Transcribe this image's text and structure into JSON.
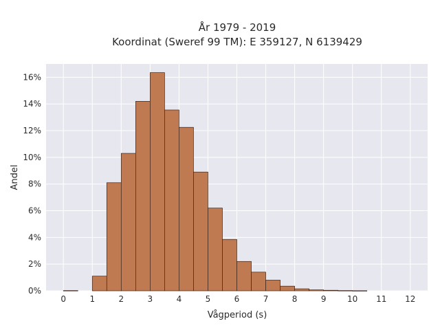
{
  "chart_data": {
    "type": "bar",
    "title_line1": "År 1979 - 2019",
    "title_line2": "Koordinat (Sweref 99 TM): E 359127, N 6139429",
    "xlabel": "Vågperiod (s)",
    "ylabel": "Andel",
    "xlim": [
      -0.6,
      12.6
    ],
    "ylim": [
      0,
      17
    ],
    "x_ticks": [
      0,
      1,
      2,
      3,
      4,
      5,
      6,
      7,
      8,
      9,
      10,
      11,
      12
    ],
    "x_tick_labels": [
      "0",
      "1",
      "2",
      "3",
      "4",
      "5",
      "6",
      "7",
      "8",
      "9",
      "10",
      "11",
      "12"
    ],
    "y_ticks": [
      0,
      2,
      4,
      6,
      8,
      10,
      12,
      14,
      16
    ],
    "y_tick_labels": [
      "0%",
      "2%",
      "4%",
      "6%",
      "8%",
      "10%",
      "12%",
      "14%",
      "16%"
    ],
    "grid": true,
    "bin_width": 0.5,
    "bin_starts": [
      0,
      1,
      1.5,
      2,
      2.5,
      3,
      3.5,
      4,
      4.5,
      5,
      5.5,
      6,
      6.5,
      7,
      7.5,
      8,
      8.5,
      9,
      9.5,
      10
    ],
    "values": [
      0.02,
      1.1,
      8.1,
      10.3,
      14.2,
      16.35,
      13.55,
      12.25,
      8.9,
      6.2,
      3.85,
      2.2,
      1.4,
      0.8,
      0.35,
      0.15,
      0.07,
      0.04,
      0.02,
      0.01
    ],
    "colors": {
      "bar_fill": "#c07a52",
      "bar_stroke": "#3b2418",
      "plot_bg": "#e7e7ef",
      "grid": "#ffffff"
    }
  }
}
